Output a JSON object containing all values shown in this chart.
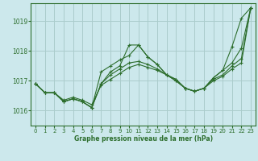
{
  "title": "Graphe pression niveau de la mer (hPa)",
  "bg_color": "#cce8ec",
  "grid_color": "#aacccc",
  "line_color": "#2d6e2d",
  "xlim": [
    -0.5,
    23.5
  ],
  "ylim": [
    1015.5,
    1019.6
  ],
  "yticks": [
    1016,
    1017,
    1018,
    1019
  ],
  "xticks": [
    0,
    1,
    2,
    3,
    4,
    5,
    6,
    7,
    8,
    9,
    10,
    11,
    12,
    13,
    14,
    15,
    16,
    17,
    18,
    19,
    20,
    21,
    22,
    23
  ],
  "series": [
    [
      1016.9,
      1016.6,
      1016.6,
      1016.3,
      1016.4,
      1016.3,
      1016.1,
      1016.9,
      1017.3,
      1017.5,
      1018.2,
      1018.2,
      1017.8,
      1017.55,
      1017.2,
      1017.0,
      1016.75,
      1016.65,
      1016.75,
      1017.1,
      1017.35,
      1018.15,
      1019.1,
      1019.45
    ],
    [
      1016.9,
      1016.6,
      1016.6,
      1016.3,
      1016.4,
      1016.3,
      1016.1,
      1017.3,
      1017.5,
      1017.7,
      1017.85,
      1018.2,
      1017.8,
      1017.55,
      1017.2,
      1017.0,
      1016.75,
      1016.65,
      1016.75,
      1017.1,
      1017.35,
      1017.6,
      1018.1,
      1019.45
    ],
    [
      1016.9,
      1016.6,
      1016.6,
      1016.3,
      1016.4,
      1016.3,
      1016.1,
      1016.9,
      1017.2,
      1017.4,
      1017.6,
      1017.65,
      1017.55,
      1017.4,
      1017.2,
      1017.05,
      1016.75,
      1016.65,
      1016.75,
      1017.05,
      1017.2,
      1017.5,
      1017.75,
      1019.45
    ],
    [
      1016.9,
      1016.6,
      1016.6,
      1016.35,
      1016.45,
      1016.35,
      1016.2,
      1016.85,
      1017.05,
      1017.25,
      1017.45,
      1017.55,
      1017.45,
      1017.35,
      1017.2,
      1017.05,
      1016.75,
      1016.65,
      1016.75,
      1017.0,
      1017.15,
      1017.4,
      1017.6,
      1019.45
    ]
  ]
}
